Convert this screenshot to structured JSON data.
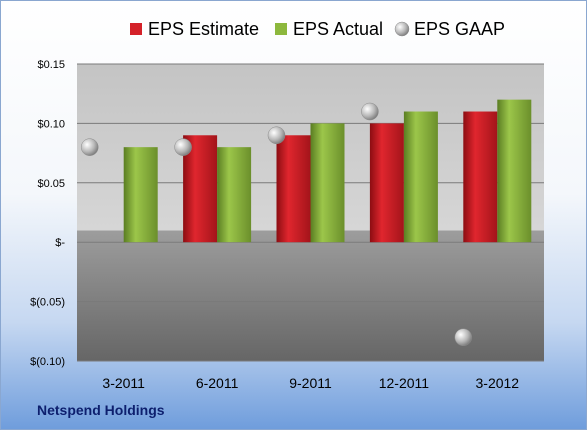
{
  "chart_data": {
    "type": "bar",
    "categories": [
      "3-2011",
      "6-2011",
      "9-2011",
      "12-2011",
      "3-2012"
    ],
    "series": [
      {
        "name": "EPS Estimate",
        "type": "bar",
        "color": "#d42129",
        "values": [
          null,
          0.09,
          0.09,
          0.1,
          0.11
        ]
      },
      {
        "name": "EPS Actual",
        "type": "bar",
        "color": "#8db83d",
        "values": [
          0.08,
          0.08,
          0.1,
          0.11,
          0.12
        ]
      },
      {
        "name": "EPS GAAP",
        "type": "scatter",
        "color": "#b3b3b3",
        "values": [
          0.08,
          0.08,
          0.09,
          0.11,
          -0.08
        ]
      }
    ],
    "ylim": [
      -0.1,
      0.15
    ],
    "yticks": [
      {
        "value": 0.15,
        "label": "$0.15"
      },
      {
        "value": 0.1,
        "label": "$0.10"
      },
      {
        "value": 0.05,
        "label": "$0.05"
      },
      {
        "value": 0,
        "label": "$-"
      },
      {
        "value": -0.05,
        "label": "$(0.05)"
      },
      {
        "value": -0.1,
        "label": "$(0.10)"
      }
    ],
    "legend_position": "top",
    "grid": true
  },
  "footer": {
    "company": "Netspend Holdings"
  }
}
